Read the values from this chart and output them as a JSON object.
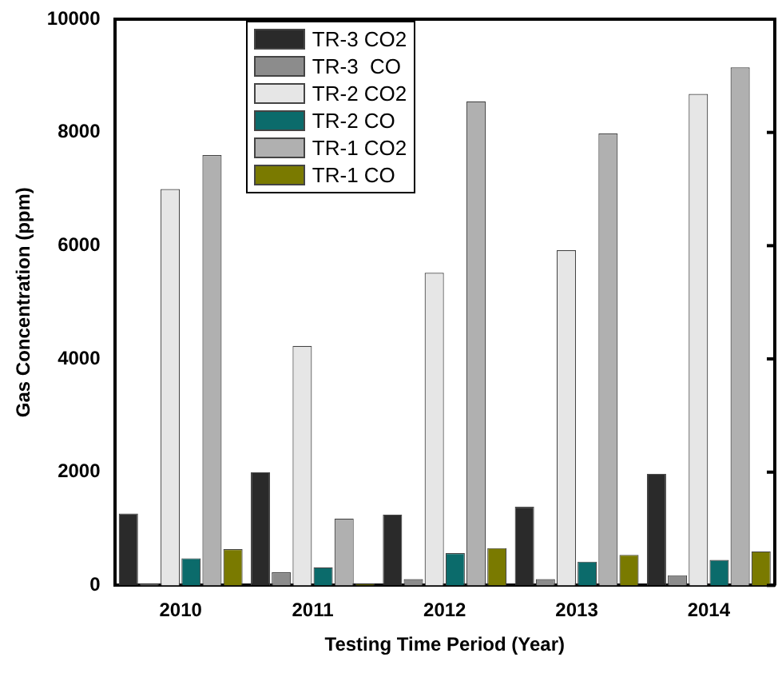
{
  "chart_data": {
    "type": "bar",
    "xlabel": "Testing Time Period (Year)",
    "ylabel": "Gas Concentration (ppm)",
    "categories": [
      "2010",
      "2011",
      "2012",
      "2013",
      "2014"
    ],
    "ylim": [
      0,
      10000
    ],
    "yticks": [
      0,
      2000,
      4000,
      6000,
      8000,
      10000
    ],
    "grid": false,
    "legend": "top left",
    "series": [
      {
        "name": "TR-3 CO2",
        "color": "#2a2a2a",
        "values": [
          1270,
          2000,
          1250,
          1390,
          1970
        ]
      },
      {
        "name": "TR-3  CO",
        "color": "#8c8c8c",
        "values": [
          30,
          230,
          110,
          110,
          180
        ]
      },
      {
        "name": "TR-2 CO2",
        "color": "#e6e6e6",
        "values": [
          7000,
          4230,
          5520,
          5920,
          8680
        ]
      },
      {
        "name": "TR-2 CO",
        "color": "#0b6b6b",
        "values": [
          480,
          320,
          570,
          420,
          450
        ]
      },
      {
        "name": "TR-1 CO2",
        "color": "#b0b0b0",
        "values": [
          7600,
          1180,
          8550,
          7980,
          9150
        ]
      },
      {
        "name": "TR-1 CO",
        "color": "#7a7a00",
        "values": [
          640,
          30,
          660,
          540,
          600
        ]
      }
    ]
  }
}
